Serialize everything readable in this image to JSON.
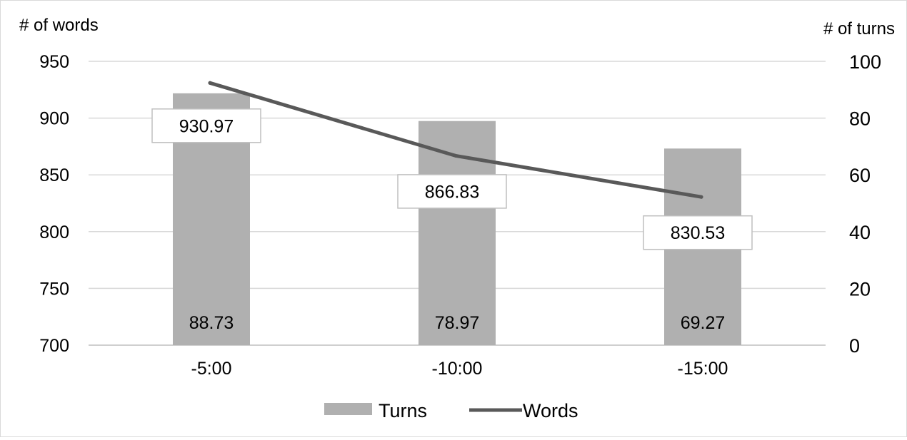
{
  "chart_data": {
    "type": "bar",
    "categories": [
      "-5:00",
      "-10:00",
      "-15:00"
    ],
    "series": [
      {
        "name": "Turns",
        "type": "bar",
        "axis": "right",
        "values": [
          88.73,
          78.97,
          69.27
        ],
        "color": "#b0b0b0"
      },
      {
        "name": "Words",
        "type": "line",
        "axis": "left",
        "values": [
          930.97,
          866.83,
          830.53
        ],
        "color": "#595959"
      }
    ],
    "ylabel_left": "# of words",
    "ylabel_right": "# of turns",
    "ylim_left": [
      700,
      950
    ],
    "ylim_right": [
      0,
      100
    ],
    "yticks_left": [
      "950",
      "900",
      "850",
      "800",
      "750",
      "700"
    ],
    "yticks_right": [
      "100",
      "80",
      "60",
      "40",
      "20",
      "0"
    ],
    "data_labels": {
      "turns": [
        "88.73",
        "78.97",
        "69.27"
      ],
      "words": [
        "930.97",
        "866.83",
        "830.53"
      ]
    },
    "legend": {
      "position": "bottom",
      "entries": [
        "Turns",
        "Words"
      ]
    },
    "grid": true
  }
}
